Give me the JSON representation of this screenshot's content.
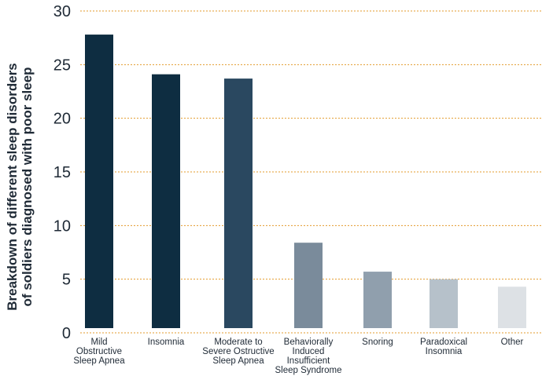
{
  "chart_data": {
    "type": "bar",
    "title": "",
    "ylabel": "Breakdown of different sleep disorders of soldiers diagnosed with poor sleep",
    "ylabel_lines": [
      "Breakdown of different sleep disorders",
      "of soldiers diagnosed with poor sleep"
    ],
    "xlabel": "",
    "ylim": [
      0,
      30
    ],
    "yticks": [
      0,
      5,
      10,
      15,
      20,
      25,
      30
    ],
    "grid": "horizontal-dotted",
    "grid_color": "#e39b2c",
    "categories": [
      "Mild Obstructive Sleep Apnea",
      "Insomnia",
      "Moderate to Severe Ostructive Sleep Apnea",
      "Behaviorally Induced Insufficient Sleep Syndrome",
      "Snoring",
      "Paradoxical Insomnia",
      "Other"
    ],
    "category_lines": [
      [
        "Mild",
        "Obstructive",
        "Sleep Apnea"
      ],
      [
        "Insomnia"
      ],
      [
        "Moderate to",
        "Severe Ostructive",
        "Sleep Apnea"
      ],
      [
        "Behaviorally",
        "Induced",
        "Insufficient",
        "Sleep Syndrome"
      ],
      [
        "Snoring"
      ],
      [
        "Paradoxical",
        "Insomnia"
      ],
      [
        "Other"
      ]
    ],
    "values": [
      27.8,
      24.1,
      23.7,
      8.4,
      5.7,
      5.0,
      4.3
    ],
    "colors": [
      "#0e2d41",
      "#0e2d41",
      "#2a4860",
      "#7a8b9b",
      "#909fad",
      "#b6c1ca",
      "#dde1e5"
    ]
  }
}
